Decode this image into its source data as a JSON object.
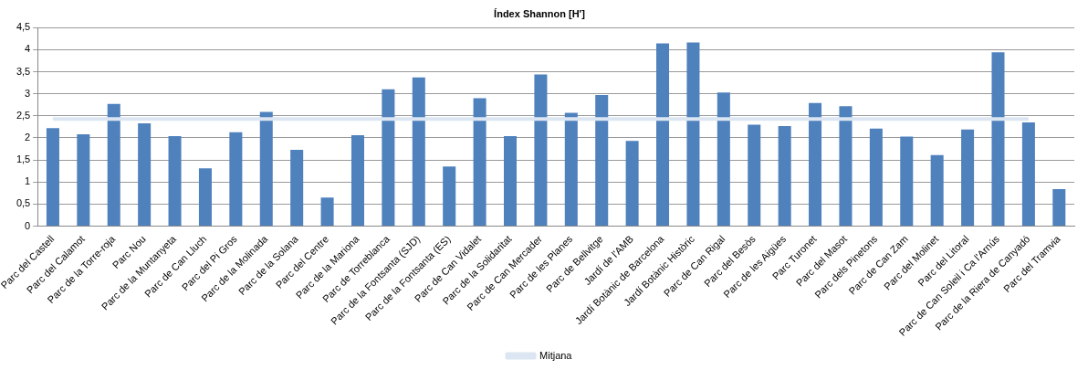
{
  "chart_data": {
    "type": "bar",
    "title": "Índex Shannon [H']",
    "categories": [
      "Parc del Castell",
      "Parc del Calamot",
      "Parc de la Torre-roja",
      "Parc Nou",
      "Parc de la Muntanyeta",
      "Parc de Can Lluch",
      "Parc del Pi Gros",
      "Parc de la Molinada",
      "Parc de la Solana",
      "Parc del Centre",
      "Parc de la Mariona",
      "Parc de Torreblanca",
      "Parc de la Fontsanta (SJD)",
      "Parc de la Fontsanta (ES)",
      "Parc de Can Vidalet",
      "Parc de la Solidaritat",
      "Parc de Can Mercader",
      "Parc de les Planes",
      "Parc de Bellvitge",
      "Jardí de l'AMB",
      "Jardí Botànic de Barcelona",
      "Jardí Botànic Històric",
      "Parc de Can Rigal",
      "Parc del Besòs",
      "Parc de les Aigües",
      "Parc Turonet",
      "Parc del Masot",
      "Parc dels Pinetons",
      "Parc de Can Zam",
      "Parc del Molinet",
      "Parc del Litoral",
      "Parc de Can Soleil i Ca l'Arnús",
      "Parc de la Riera de Canyadó",
      "Parc del Tramvia"
    ],
    "series": [
      {
        "color": "#4f81bd",
        "values": [
          2.22,
          2.08,
          2.77,
          2.33,
          2.04,
          1.31,
          2.13,
          2.59,
          1.73,
          0.65,
          2.06,
          3.1,
          3.37,
          1.35,
          2.9,
          2.04,
          3.44,
          2.57,
          2.97,
          1.93,
          4.14,
          4.16,
          3.03,
          2.3,
          2.27,
          2.79,
          2.72,
          2.21,
          2.03,
          1.61,
          2.19,
          3.94,
          2.35,
          0.84
        ]
      },
      {
        "type": "line",
        "name": "Mitjana",
        "color": "#dce6f2",
        "values": [
          2.43,
          2.43,
          2.43,
          2.43,
          2.43,
          2.43,
          2.43,
          2.43,
          2.43,
          2.43,
          2.43,
          2.43,
          2.43,
          2.43,
          2.43,
          2.43,
          2.43,
          2.43,
          2.43,
          2.43,
          2.43,
          2.43,
          2.43,
          2.43,
          2.43,
          2.43,
          2.43,
          2.43,
          2.43,
          2.43,
          2.43,
          2.43,
          2.43,
          null
        ]
      }
    ],
    "ylim": [
      0,
      4.5
    ],
    "yticks": [
      {
        "value": 0,
        "label": "0"
      },
      {
        "value": 0.5,
        "label": "0,5"
      },
      {
        "value": 1,
        "label": "1"
      },
      {
        "value": 1.5,
        "label": "1,5"
      },
      {
        "value": 2,
        "label": "2"
      },
      {
        "value": 2.5,
        "label": "2,5"
      },
      {
        "value": 3,
        "label": "3"
      },
      {
        "value": 3.5,
        "label": "3,5"
      },
      {
        "value": 4,
        "label": "4"
      },
      {
        "value": 4.5,
        "label": "4,5"
      }
    ],
    "grid": "y",
    "legend": "bottom",
    "marker": "none"
  }
}
